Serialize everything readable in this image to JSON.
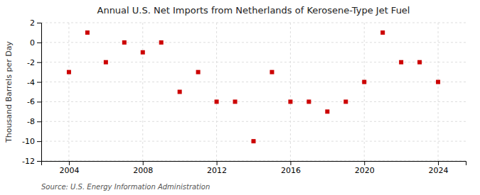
{
  "chart_data": {
    "type": "scatter",
    "title": "Annual U.S. Net Imports from Netherlands of Kerosene-Type Jet Fuel",
    "ylabel": "Thousand Barrels per Day",
    "source": "Source: U.S. Energy Information Administration",
    "x": [
      2004,
      2005,
      2006,
      2007,
      2008,
      2009,
      2010,
      2011,
      2012,
      2013,
      2014,
      2015,
      2016,
      2017,
      2018,
      2019,
      2020,
      2021,
      2022,
      2023,
      2024
    ],
    "values": [
      -3.0,
      1.0,
      -2.0,
      0.0,
      -1.0,
      0.0,
      -5.0,
      -3.0,
      -6.0,
      -6.0,
      -10.0,
      -3.0,
      -6.0,
      -6.0,
      -7.0,
      -6.0,
      -4.0,
      1.0,
      -2.0,
      -2.0,
      -4.0
    ],
    "color": "#cc0000",
    "marker": "square",
    "xlim": [
      2002.5,
      2025.5
    ],
    "xticks": [
      2004,
      2008,
      2012,
      2016,
      2020,
      2024
    ],
    "ylim": [
      -12,
      2
    ],
    "yticks": [
      -12,
      -10,
      -8,
      -6,
      -4,
      -2,
      0,
      2
    ],
    "grid": true
  }
}
